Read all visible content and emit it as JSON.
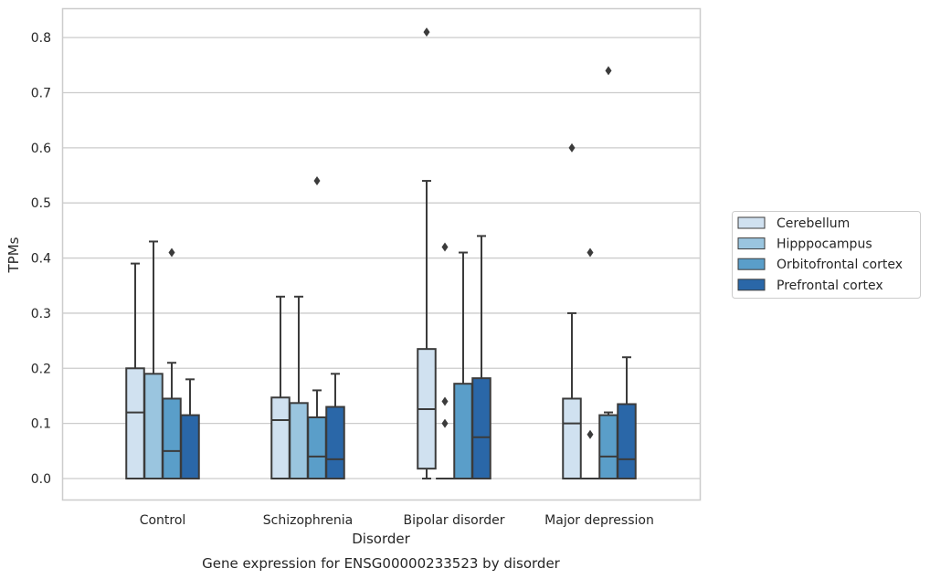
{
  "chart_data": {
    "type": "box",
    "caption": "Gene expression for ENSG00000233523 by disorder",
    "xlabel": "Disorder",
    "ylabel": "TPMs",
    "ylim": [
      -0.04,
      0.85
    ],
    "yticks": [
      "0.0",
      "0.1",
      "0.2",
      "0.3",
      "0.4",
      "0.5",
      "0.6",
      "0.7",
      "0.8"
    ],
    "grid": true,
    "legend_position": "right",
    "categories": [
      "Control",
      "Schizophrenia",
      "Bipolar disorder",
      "Major depression"
    ],
    "series": [
      {
        "name": "Cerebellum",
        "color": "#d0e1f0",
        "boxes": [
          {
            "whislo": 0.0,
            "q1": 0.0,
            "med": 0.12,
            "q3": 0.2,
            "whishi": 0.39,
            "fliers": []
          },
          {
            "whislo": 0.0,
            "q1": 0.0,
            "med": 0.106,
            "q3": 0.147,
            "whishi": 0.33,
            "fliers": []
          },
          {
            "whislo": 0.0,
            "q1": 0.018,
            "med": 0.126,
            "q3": 0.235,
            "whishi": 0.54,
            "fliers": [
              0.81
            ]
          },
          {
            "whislo": 0.0,
            "q1": 0.0,
            "med": 0.1,
            "q3": 0.145,
            "whishi": 0.3,
            "fliers": [
              0.6
            ]
          }
        ]
      },
      {
        "name": "Hipppocampus",
        "color": "#9ac5df",
        "boxes": [
          {
            "whislo": 0.0,
            "q1": 0.0,
            "med": 0.0,
            "q3": 0.19,
            "whishi": 0.43,
            "fliers": []
          },
          {
            "whislo": 0.0,
            "q1": 0.0,
            "med": 0.0,
            "q3": 0.137,
            "whishi": 0.33,
            "fliers": []
          },
          {
            "whislo": 0.0,
            "q1": 0.0,
            "med": 0.0,
            "q3": 0.0,
            "whishi": 0.0,
            "fliers": [
              0.1,
              0.14,
              0.42
            ]
          },
          {
            "whislo": 0.0,
            "q1": 0.0,
            "med": 0.0,
            "q3": 0.0,
            "whishi": 0.0,
            "fliers": [
              0.08,
              0.41
            ]
          }
        ]
      },
      {
        "name": "Orbitofrontal cortex",
        "color": "#5a9ec9",
        "boxes": [
          {
            "whislo": 0.0,
            "q1": 0.0,
            "med": 0.05,
            "q3": 0.145,
            "whishi": 0.21,
            "fliers": [
              0.41
            ]
          },
          {
            "whislo": 0.0,
            "q1": 0.0,
            "med": 0.04,
            "q3": 0.111,
            "whishi": 0.16,
            "fliers": [
              0.54
            ]
          },
          {
            "whislo": 0.0,
            "q1": 0.0,
            "med": 0.0,
            "q3": 0.172,
            "whishi": 0.41,
            "fliers": []
          },
          {
            "whislo": 0.0,
            "q1": 0.0,
            "med": 0.04,
            "q3": 0.115,
            "whishi": 0.12,
            "fliers": [
              0.74
            ]
          }
        ]
      },
      {
        "name": "Prefrontal cortex",
        "color": "#2a67a8",
        "boxes": [
          {
            "whislo": 0.0,
            "q1": 0.0,
            "med": 0.0,
            "q3": 0.115,
            "whishi": 0.18,
            "fliers": []
          },
          {
            "whislo": 0.0,
            "q1": 0.0,
            "med": 0.035,
            "q3": 0.13,
            "whishi": 0.19,
            "fliers": []
          },
          {
            "whislo": 0.0,
            "q1": 0.0,
            "med": 0.075,
            "q3": 0.182,
            "whishi": 0.44,
            "fliers": []
          },
          {
            "whislo": 0.0,
            "q1": 0.0,
            "med": 0.035,
            "q3": 0.135,
            "whishi": 0.22,
            "fliers": []
          }
        ]
      }
    ]
  }
}
